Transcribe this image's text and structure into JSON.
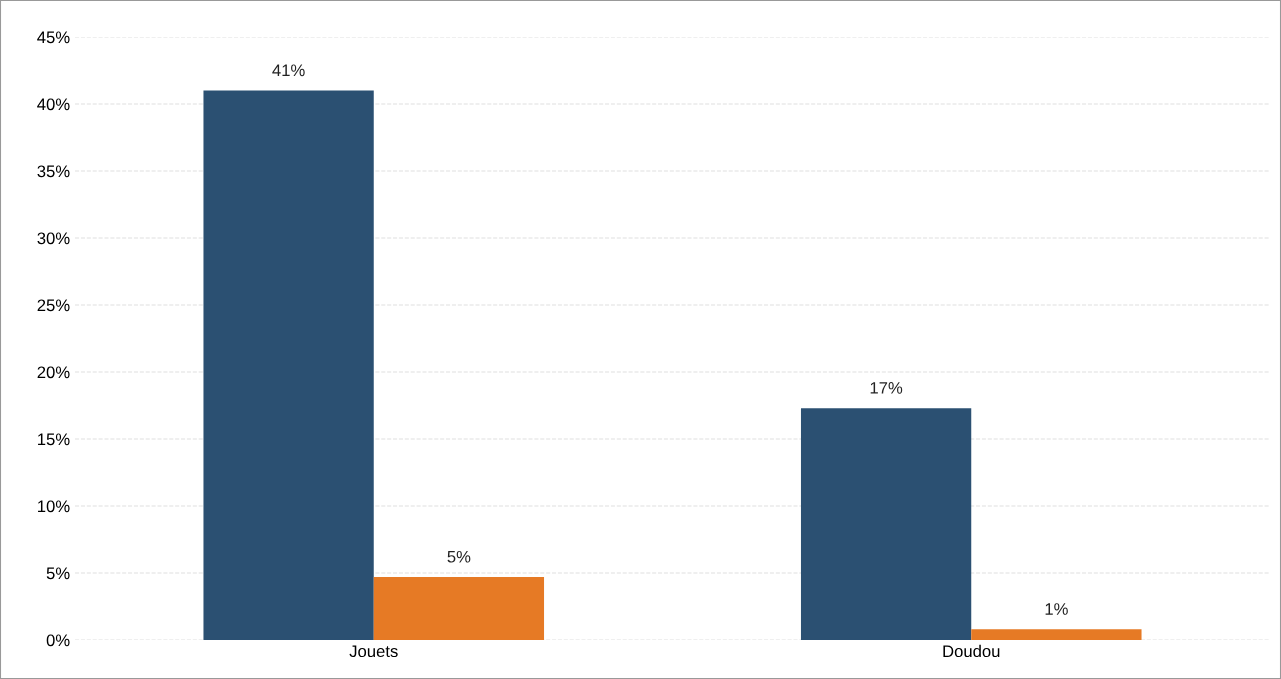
{
  "chart_data": {
    "type": "bar",
    "categories": [
      "Jouets",
      "Doudou"
    ],
    "series": [
      {
        "color": "#2b5072",
        "values": [
          41,
          17.3
        ],
        "value_labels": [
          "41%",
          "17%"
        ]
      },
      {
        "color": "#e67a25",
        "values": [
          4.7,
          0.8
        ],
        "value_labels": [
          "5%",
          "1%"
        ]
      }
    ],
    "ylim": [
      0,
      45
    ],
    "yticks": [
      {
        "value": 0,
        "label": "0%"
      },
      {
        "value": 5,
        "label": "5%"
      },
      {
        "value": 10,
        "label": "10%"
      },
      {
        "value": 15,
        "label": "15%"
      },
      {
        "value": 20,
        "label": "20%"
      },
      {
        "value": 25,
        "label": "25%"
      },
      {
        "value": 30,
        "label": "30%"
      },
      {
        "value": 35,
        "label": "35%"
      },
      {
        "value": 40,
        "label": "40%"
      },
      {
        "value": 45,
        "label": "45%"
      }
    ],
    "grid": "y"
  }
}
